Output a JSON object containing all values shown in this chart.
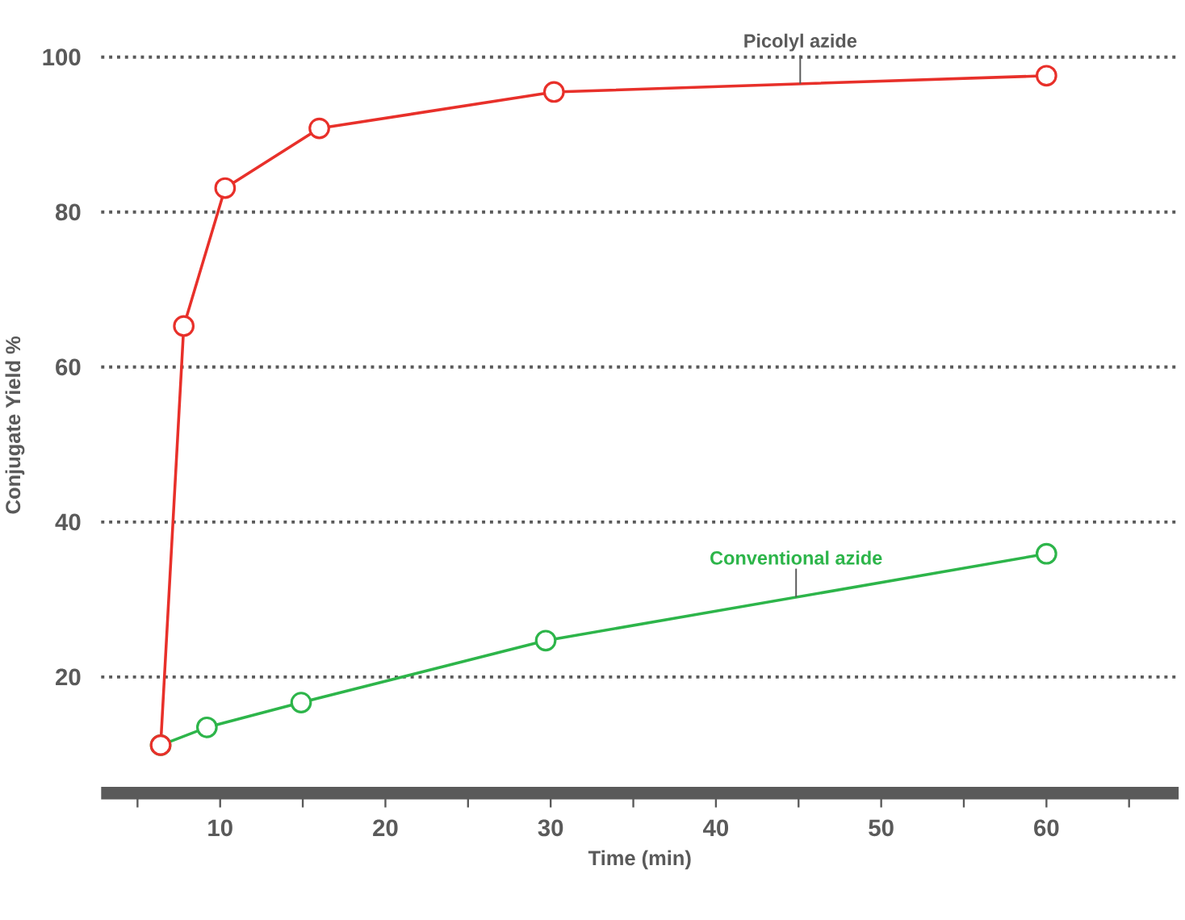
{
  "chart_data": {
    "type": "line",
    "xlabel": "Time (min)",
    "ylabel": "Conjugate Yield %",
    "xlim": [
      2.8,
      68
    ],
    "ylim": [
      5,
      100
    ],
    "xticks": [
      {
        "value": 5,
        "label": null
      },
      10,
      {
        "value": 15,
        "label": null
      },
      20,
      {
        "value": 25,
        "label": null
      },
      30,
      {
        "value": 35,
        "label": null
      },
      40,
      {
        "value": 45,
        "label": null
      },
      50,
      {
        "value": 55,
        "label": null
      },
      60,
      {
        "value": 65,
        "label": null
      }
    ],
    "yticks": [
      20,
      40,
      60,
      80,
      100
    ],
    "grid": "y",
    "marker": "circle",
    "line_style": "solid",
    "series": [
      {
        "name": "Picolyl azide",
        "color": "#e8302a",
        "x": [
          6.4,
          7.8,
          10.3,
          16.0,
          30.2,
          60.0
        ],
        "values": [
          11.2,
          65.3,
          83.1,
          90.8,
          95.5,
          97.6
        ]
      },
      {
        "name": "Conventional azide",
        "color": "#2db54a",
        "x": [
          6.4,
          9.2,
          14.9,
          29.7,
          60.0
        ],
        "values": [
          11.2,
          13.5,
          16.7,
          24.7,
          35.9
        ]
      }
    ]
  }
}
